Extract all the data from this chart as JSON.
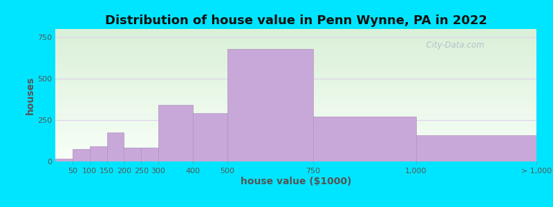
{
  "title": "Distribution of house value in Penn Wynne, PA in 2022",
  "xlabel": "house value ($1000)",
  "ylabel": "houses",
  "bar_lefts": [
    0,
    50,
    100,
    150,
    200,
    250,
    300,
    400,
    500,
    750,
    1050
  ],
  "bar_rights": [
    50,
    100,
    150,
    200,
    250,
    300,
    400,
    500,
    750,
    1050,
    1400
  ],
  "bar_values": [
    15,
    75,
    90,
    175,
    85,
    85,
    340,
    290,
    680,
    270,
    160
  ],
  "bar_color": "#c8a8d8",
  "bar_edge_color": "#b090c0",
  "ylim": [
    0,
    800
  ],
  "yticks": [
    0,
    250,
    500,
    750
  ],
  "xlim": [
    0,
    1400
  ],
  "xtick_positions": [
    50,
    100,
    150,
    200,
    250,
    300,
    400,
    500,
    750,
    1050,
    1400
  ],
  "xtick_labels": [
    "50",
    "100",
    "150",
    "200",
    "250",
    "300",
    "400",
    "500",
    "750",
    "1,000",
    "> 1,000"
  ],
  "bg_outer": "#00e5ff",
  "bg_grad_top": "#daf0d8",
  "bg_grad_bottom": "#f8fff8",
  "grid_color": "#e0d0ec",
  "title_fontsize": 13,
  "label_fontsize": 10,
  "tick_fontsize": 8,
  "watermark": "  City-Data.com"
}
